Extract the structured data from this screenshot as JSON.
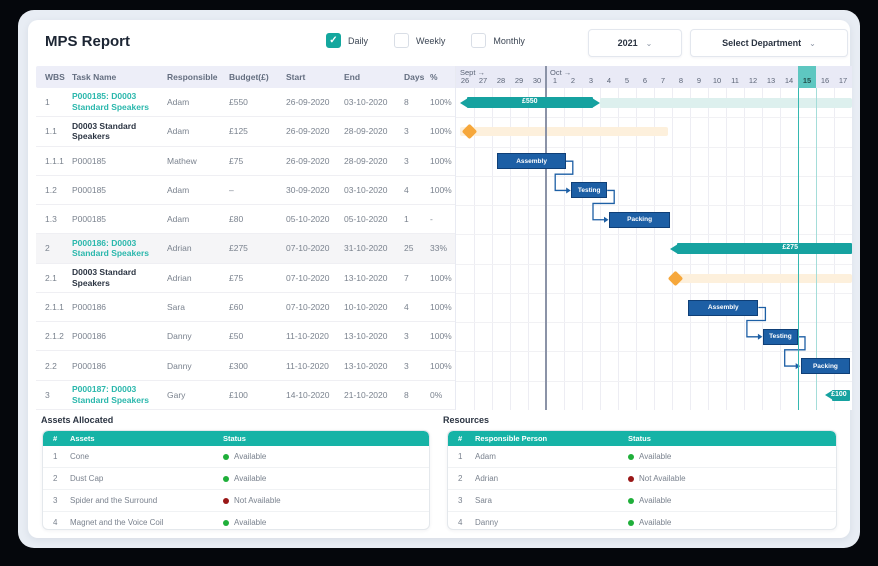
{
  "header": {
    "title": "MPS Report",
    "filters": [
      {
        "label": "Daily",
        "checked": true
      },
      {
        "label": "Weekly",
        "checked": false
      },
      {
        "label": "Monthly",
        "checked": false
      }
    ],
    "year_select": "2021",
    "department_select": "Select Department"
  },
  "task_table": {
    "columns": [
      "WBS",
      "Task Name",
      "Responsible",
      "Budget(£)",
      "Start",
      "End",
      "Days",
      "%"
    ],
    "rows": [
      {
        "wbs": "1",
        "task": "P000185: D0003 Standard Speakers",
        "style": "link",
        "shaded": false,
        "responsible": "Adam",
        "budget": "£550",
        "start": "26-09-2020",
        "end": "03-10-2020",
        "days": "8",
        "pct": "100%"
      },
      {
        "wbs": "1.1",
        "task": "D0003 Standard Speakers",
        "style": "bold",
        "shaded": false,
        "responsible": "Adam",
        "budget": "£125",
        "start": "26-09-2020",
        "end": "28-09-2020",
        "days": "3",
        "pct": "100%"
      },
      {
        "wbs": "1.1.1",
        "task": "P000185",
        "style": "plain",
        "shaded": false,
        "responsible": "Mathew",
        "budget": "£75",
        "start": "26-09-2020",
        "end": "28-09-2020",
        "days": "3",
        "pct": "100%"
      },
      {
        "wbs": "1.2",
        "task": "P000185",
        "style": "plain",
        "shaded": false,
        "responsible": "Adam",
        "budget": "–",
        "start": "30-09-2020",
        "end": "03-10-2020",
        "days": "4",
        "pct": "100%"
      },
      {
        "wbs": "1.3",
        "task": "P000185",
        "style": "plain",
        "shaded": false,
        "responsible": "Adam",
        "budget": "£80",
        "start": "05-10-2020",
        "end": "05-10-2020",
        "days": "1",
        "pct": "-"
      },
      {
        "wbs": "2",
        "task": "P000186: D0003 Standard Speakers",
        "style": "link",
        "shaded": true,
        "responsible": "Adrian",
        "budget": "£275",
        "start": "07-10-2020",
        "end": "31-10-2020",
        "days": "25",
        "pct": "33%"
      },
      {
        "wbs": "2.1",
        "task": "D0003 Standard Speakers",
        "style": "bold",
        "shaded": false,
        "responsible": "Adrian",
        "budget": "£75",
        "start": "07-10-2020",
        "end": "13-10-2020",
        "days": "7",
        "pct": "100%"
      },
      {
        "wbs": "2.1.1",
        "task": "P000186",
        "style": "plain",
        "shaded": false,
        "responsible": "Sara",
        "budget": "£60",
        "start": "07-10-2020",
        "end": "10-10-2020",
        "days": "4",
        "pct": "100%"
      },
      {
        "wbs": "2.1.2",
        "task": "P000186",
        "style": "plain",
        "shaded": false,
        "responsible": "Danny",
        "budget": "£50",
        "start": "11-10-2020",
        "end": "13-10-2020",
        "days": "3",
        "pct": "100%"
      },
      {
        "wbs": "2.2",
        "task": "P000186",
        "style": "plain",
        "shaded": false,
        "responsible": "Danny",
        "budget": "£300",
        "start": "11-10-2020",
        "end": "13-10-2020",
        "days": "3",
        "pct": "100%"
      },
      {
        "wbs": "3",
        "task": "P000187: D0003 Standard Speakers",
        "style": "link",
        "shaded": false,
        "responsible": "Gary",
        "budget": "£100",
        "start": "14-10-2020",
        "end": "21-10-2020",
        "days": "8",
        "pct": "0%"
      }
    ]
  },
  "gantt": {
    "months": [
      {
        "label": "Sept →",
        "span": 5
      },
      {
        "label": "Oct →",
        "span": 17
      }
    ],
    "days": [
      "26",
      "27",
      "28",
      "29",
      "30",
      "1",
      "2",
      "3",
      "4",
      "5",
      "6",
      "7",
      "8",
      "9",
      "10",
      "11",
      "12",
      "13",
      "14",
      "15",
      "16",
      "17"
    ],
    "highlighted_day": "15",
    "highlighted_index": 19,
    "bars": [
      {
        "row": 0,
        "type": "summary",
        "label": "£550",
        "startDay": 0.2,
        "endDay": 8.0,
        "arrows": "both",
        "tailToDay": 22,
        "labelFrac": 0.5
      },
      {
        "row": 1,
        "type": "milestone",
        "atDay": 0.75,
        "bandStartDay": 0.2,
        "bandEndDay": 11.8
      },
      {
        "row": 2,
        "type": "task",
        "label": "Assembly",
        "startDay": 2.3,
        "endDay": 6.1
      },
      {
        "row": 3,
        "type": "task",
        "label": "Testing",
        "startDay": 6.4,
        "endDay": 8.4
      },
      {
        "row": 4,
        "type": "task",
        "label": "Packing",
        "startDay": 8.5,
        "endDay": 11.9
      },
      {
        "row": 5,
        "type": "summary",
        "label": "£275",
        "startDay": 11.9,
        "endDay": 22,
        "arrows": "left",
        "labelFrac": 0.66
      },
      {
        "row": 6,
        "type": "milestone",
        "atDay": 12.2,
        "bandStartDay": 12.2,
        "bandEndDay": 22
      },
      {
        "row": 7,
        "type": "task",
        "label": "Assembly",
        "startDay": 12.9,
        "endDay": 16.8
      },
      {
        "row": 8,
        "type": "task",
        "label": "Testing",
        "startDay": 17.05,
        "endDay": 19.0
      },
      {
        "row": 9,
        "type": "task",
        "label": "Packing",
        "startDay": 19.15,
        "endDay": 21.9
      },
      {
        "row": 10,
        "type": "summary",
        "label": "£100",
        "startDay": 20.5,
        "endDay": 21.9,
        "arrows": "left",
        "labelFrac": 0.55
      }
    ],
    "connectors": [
      {
        "fromBar": 2,
        "toBar": 3
      },
      {
        "fromBar": 3,
        "toBar": 4
      },
      {
        "fromBar": 7,
        "toBar": 8
      },
      {
        "fromBar": 8,
        "toBar": 9
      }
    ]
  },
  "assets_table": {
    "title": "Assets Allocated",
    "columns": [
      "#",
      "Assets",
      "Status"
    ],
    "rows": [
      {
        "num": "1",
        "name": "Cone",
        "status": "Available",
        "status_color": "green"
      },
      {
        "num": "2",
        "name": "Dust Cap",
        "status": "Available",
        "status_color": "green"
      },
      {
        "num": "3",
        "name": "Spider and the Surround",
        "status": "Not Available",
        "status_color": "red"
      },
      {
        "num": "4",
        "name": "Magnet and the Voice Coil",
        "status": "Available",
        "status_color": "green"
      }
    ]
  },
  "resources_table": {
    "title": "Resources",
    "columns": [
      "#",
      "Responsible Person",
      "Status"
    ],
    "rows": [
      {
        "num": "1",
        "name": "Adam",
        "status": "Available",
        "status_color": "green"
      },
      {
        "num": "2",
        "name": "Adrian",
        "status": "Not Available",
        "status_color": "red"
      },
      {
        "num": "3",
        "name": "Sara",
        "status": "Available",
        "status_color": "green"
      },
      {
        "num": "4",
        "name": "Danny",
        "status": "Available",
        "status_color": "green"
      }
    ]
  },
  "colors": {
    "accent_teal": "#16a2a0",
    "teal_light_band": "#ddf0ee",
    "highlight_cell": "#5ec7c1",
    "task_blue": "#1d5fa5",
    "task_blue_border": "#0f3f77",
    "milestone_orange": "#f6a73b",
    "orange_band": "#fdf0dc",
    "table_header_teal": "#16b3a6",
    "status_green": "#1faf3a",
    "status_red": "#991717",
    "link_teal": "#2ab7ac"
  }
}
